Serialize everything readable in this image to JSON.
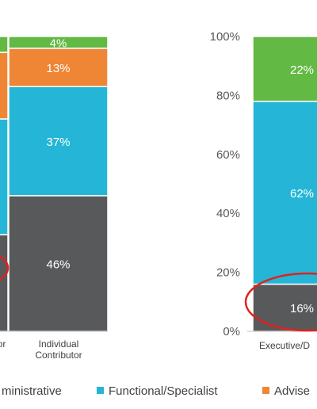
{
  "chart_data": [
    {
      "type": "bar",
      "stacked": true,
      "categories": [
        "",
        "Individual Contributor"
      ],
      "category_lines": [
        [
          "or"
        ],
        [
          "Individual",
          "Contributor"
        ]
      ],
      "ylim": [
        0,
        100
      ],
      "series": [
        {
          "name": "Administrative",
          "values": [
            null,
            46
          ],
          "labels": [
            "",
            "46%"
          ]
        },
        {
          "name": "Functional/Specialist",
          "values": [
            null,
            37
          ],
          "labels": [
            "",
            "37%"
          ]
        },
        {
          "name": "Advisor",
          "values": [
            null,
            13
          ],
          "labels": [
            "",
            "13%"
          ]
        },
        {
          "name": "",
          "values": [
            null,
            4
          ],
          "labels": [
            "",
            "4%"
          ]
        }
      ]
    },
    {
      "type": "bar",
      "stacked": true,
      "categories": [
        "Executive/D"
      ],
      "ylim": [
        0,
        100
      ],
      "yticks": [
        "0%",
        "20%",
        "40%",
        "60%",
        "80%",
        "100%"
      ],
      "series": [
        {
          "name": "Administrative",
          "values": [
            16
          ],
          "labels": [
            "16%"
          ]
        },
        {
          "name": "Functional/Specialist",
          "values": [
            62
          ],
          "labels": [
            "62%"
          ]
        },
        {
          "name": "Advisor",
          "values": [
            0
          ],
          "labels": [
            ""
          ]
        },
        {
          "name": "",
          "values": [
            22
          ],
          "labels": [
            "22%"
          ]
        }
      ]
    }
  ],
  "legend": [
    {
      "label": "ministrative",
      "color": "#58595b"
    },
    {
      "label": "Functional/Specialist",
      "color": "#25b5d6"
    },
    {
      "label": "Advise",
      "color": "#ef8636"
    }
  ],
  "colors": {
    "Administrative": "#58595b",
    "Functional/Specialist": "#25b5d6",
    "Advisor": "#ef8636",
    "Other": "#62b943",
    "highlight": "#e0221e"
  }
}
